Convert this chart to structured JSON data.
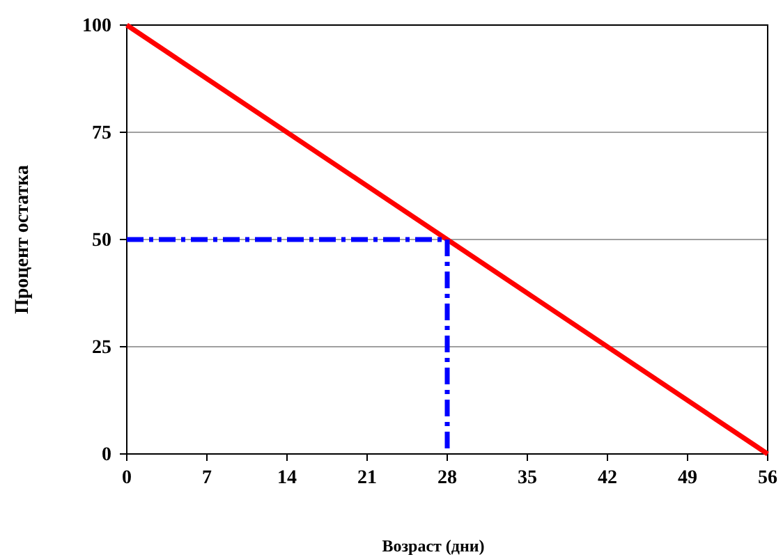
{
  "chart_data": {
    "type": "line",
    "xlabel": "Возраст (дни)",
    "ylabel": "Процент остатка",
    "xlim": [
      0,
      56
    ],
    "xticks": [
      0,
      7,
      14,
      21,
      28,
      35,
      42,
      49,
      56
    ],
    "ylim": [
      0,
      100
    ],
    "yticks": [
      0,
      25,
      50,
      75,
      100
    ],
    "grid": "y",
    "marker": "none",
    "series": [
      {
        "color": "#ff0000",
        "x": [
          0,
          56
        ],
        "values": [
          100,
          0
        ],
        "line_style": "solid"
      },
      {
        "color": "#0000ff",
        "x": [
          0,
          28,
          28
        ],
        "values": [
          50,
          50,
          0
        ],
        "line_style": "dashed"
      }
    ]
  }
}
